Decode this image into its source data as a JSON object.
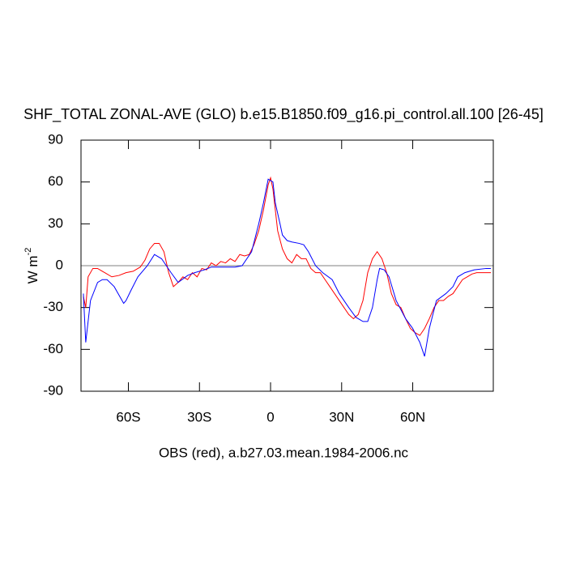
{
  "chart_data": {
    "type": "line",
    "title": "SHF_TOTAL ZONAL-AVE (GLO) b.e15.B1850.f09_g16.pi_control.all.100 [26-45]",
    "caption": "OBS (red), a.b27.03.mean.1984-2006.nc",
    "ylabel": "W m",
    "ylabel_exponent": "-2",
    "xlim": [
      -80,
      94
    ],
    "ylim": [
      -90,
      90
    ],
    "xticks": [
      {
        "value": -60,
        "label": "60S"
      },
      {
        "value": -30,
        "label": "30S"
      },
      0,
      {
        "value": 30,
        "label": "30N"
      },
      {
        "value": 60,
        "label": "60N"
      }
    ],
    "yticks": [
      -90,
      -60,
      -30,
      0,
      30,
      60,
      90
    ],
    "reference_line": 0,
    "series": [
      {
        "color": "#ff0000",
        "x": [
          -79,
          -78,
          -77,
          -75,
          -73,
          -70,
          -67,
          -64,
          -61,
          -58,
          -55,
          -53,
          -51,
          -49,
          -47,
          -45,
          -43,
          -41,
          -39,
          -37,
          -35,
          -33,
          -31,
          -29,
          -27,
          -25,
          -23,
          -21,
          -19,
          -17,
          -15,
          -13,
          -11,
          -9,
          -7,
          -5,
          -3,
          -1,
          0,
          1,
          2,
          3,
          5,
          7,
          9,
          11,
          13,
          15,
          17,
          19,
          21,
          23,
          25,
          27,
          29,
          31,
          33,
          35,
          37,
          39,
          41,
          43,
          45,
          47,
          49,
          51,
          53,
          55,
          57,
          59,
          61,
          63,
          65,
          67,
          69,
          71,
          73,
          75,
          77,
          79,
          81,
          83,
          85,
          87,
          89,
          91,
          93
        ],
        "values": [
          -22,
          -30,
          -8,
          -2,
          -2,
          -5,
          -8,
          -7,
          -5,
          -4,
          -1,
          4,
          12,
          16,
          16,
          10,
          -5,
          -15,
          -12,
          -8,
          -10,
          -5,
          -8,
          -2,
          -3,
          2,
          0,
          3,
          2,
          5,
          3,
          8,
          7,
          8,
          15,
          25,
          40,
          58,
          63,
          55,
          40,
          25,
          12,
          5,
          2,
          8,
          5,
          5,
          -2,
          -5,
          -5,
          -10,
          -15,
          -20,
          -25,
          -30,
          -35,
          -38,
          -35,
          -25,
          -5,
          5,
          10,
          5,
          -5,
          -20,
          -28,
          -30,
          -38,
          -45,
          -48,
          -50,
          -45,
          -38,
          -30,
          -25,
          -25,
          -22,
          -20,
          -15,
          -10,
          -8,
          -6,
          -5,
          -5,
          -5,
          -5
        ]
      },
      {
        "color": "#0000ff",
        "x": [
          -79,
          -78,
          -76,
          -73,
          -71,
          -69,
          -66,
          -62,
          -61,
          -59,
          -56,
          -52,
          -49,
          -46,
          -42,
          -39,
          -35,
          -32,
          -28,
          -25,
          -22,
          -18,
          -15,
          -12,
          -8,
          -5,
          -3,
          -1,
          1,
          2,
          4,
          5,
          7,
          9,
          12,
          14,
          16,
          19,
          22,
          26,
          29,
          33,
          36,
          39,
          41,
          43,
          45,
          46,
          48,
          50,
          53,
          57,
          60,
          63,
          65,
          67,
          70,
          74,
          77,
          79,
          82,
          86,
          91,
          93
        ],
        "values": [
          -20,
          -55,
          -25,
          -12,
          -10,
          -10,
          -15,
          -27,
          -25,
          -18,
          -8,
          0,
          8,
          5,
          -5,
          -12,
          -7,
          -5,
          -3,
          -1,
          -1,
          -1,
          -1,
          0,
          10,
          30,
          45,
          62,
          60,
          45,
          30,
          22,
          18,
          17,
          16,
          15,
          10,
          0,
          -5,
          -10,
          -20,
          -30,
          -37,
          -40,
          -40,
          -30,
          -10,
          -2,
          -3,
          -8,
          -25,
          -38,
          -45,
          -55,
          -65,
          -45,
          -25,
          -20,
          -15,
          -8,
          -5,
          -3,
          -2,
          -2
        ]
      }
    ]
  }
}
